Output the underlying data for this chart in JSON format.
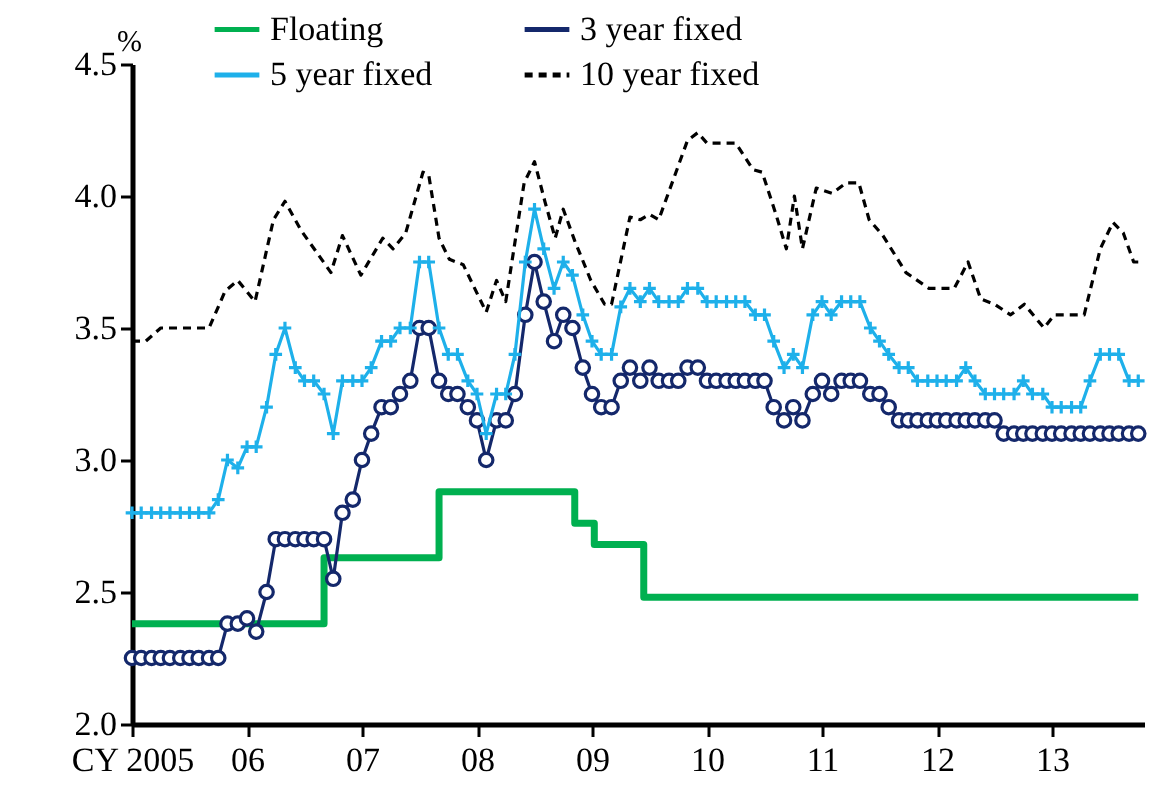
{
  "chart_data": {
    "type": "line",
    "ylabel": "%",
    "legend": "top",
    "grid": false,
    "xlim": [
      2005,
      2013.8
    ],
    "ylim": [
      2.0,
      4.5
    ],
    "xticks": [
      {
        "value": 2005,
        "label": "CY 2005"
      },
      {
        "value": 2006,
        "label": "06"
      },
      {
        "value": 2007,
        "label": "07"
      },
      {
        "value": 2008,
        "label": "08"
      },
      {
        "value": 2009,
        "label": "09"
      },
      {
        "value": 2010,
        "label": "10"
      },
      {
        "value": 2011,
        "label": "11"
      },
      {
        "value": 2012,
        "label": "12"
      },
      {
        "value": 2013,
        "label": "13"
      }
    ],
    "yticks": [
      {
        "value": 2,
        "label": "2.0"
      },
      {
        "value": 2.5,
        "label": "2.5"
      },
      {
        "value": 3,
        "label": "3.0"
      },
      {
        "value": 3.5,
        "label": "3.5"
      },
      {
        "value": 4,
        "label": "4.0"
      },
      {
        "value": 4.5,
        "label": "4.5"
      }
    ],
    "x": [
      2005.0,
      2005.08,
      2005.17,
      2005.25,
      2005.33,
      2005.42,
      2005.5,
      2005.58,
      2005.67,
      2005.75,
      2005.83,
      2005.92,
      2006.0,
      2006.08,
      2006.17,
      2006.25,
      2006.33,
      2006.42,
      2006.5,
      2006.58,
      2006.67,
      2006.75,
      2006.83,
      2006.92,
      2007.0,
      2007.08,
      2007.17,
      2007.25,
      2007.33,
      2007.42,
      2007.5,
      2007.58,
      2007.67,
      2007.75,
      2007.83,
      2007.92,
      2008.0,
      2008.08,
      2008.17,
      2008.25,
      2008.33,
      2008.42,
      2008.5,
      2008.58,
      2008.67,
      2008.75,
      2008.83,
      2008.92,
      2009.0,
      2009.08,
      2009.17,
      2009.25,
      2009.33,
      2009.42,
      2009.5,
      2009.58,
      2009.67,
      2009.75,
      2009.83,
      2009.92,
      2010.0,
      2010.08,
      2010.17,
      2010.25,
      2010.33,
      2010.42,
      2010.5,
      2010.58,
      2010.67,
      2010.75,
      2010.83,
      2010.92,
      2011.0,
      2011.08,
      2011.17,
      2011.25,
      2011.33,
      2011.42,
      2011.5,
      2011.58,
      2011.67,
      2011.75,
      2011.83,
      2011.92,
      2012.0,
      2012.08,
      2012.17,
      2012.25,
      2012.33,
      2012.42,
      2012.5,
      2012.58,
      2012.67,
      2012.75,
      2012.83,
      2012.92,
      2013.0,
      2013.08,
      2013.17,
      2013.25,
      2013.33,
      2013.42,
      2013.5,
      2013.58,
      2013.67,
      2013.75
    ],
    "series": [
      {
        "name": "Floating",
        "type": "step",
        "color": "#00b050",
        "marker": "none",
        "line_style": "solid",
        "x": [
          2005,
          2006.67,
          2007.67,
          2008.85,
          2009.02,
          2009.45,
          2013.75
        ],
        "values": [
          2.38,
          2.63,
          2.88,
          2.76,
          2.68,
          2.48,
          2.48
        ]
      },
      {
        "name": "3 year fixed",
        "color": "#14286b",
        "marker": "circle",
        "line_style": "solid",
        "values": [
          2.25,
          2.25,
          2.25,
          2.25,
          2.25,
          2.25,
          2.25,
          2.25,
          2.25,
          2.25,
          2.38,
          2.38,
          2.4,
          2.35,
          2.5,
          2.7,
          2.7,
          2.7,
          2.7,
          2.7,
          2.7,
          2.55,
          2.8,
          2.85,
          3.0,
          3.1,
          3.2,
          3.2,
          3.25,
          3.3,
          3.5,
          3.5,
          3.3,
          3.25,
          3.25,
          3.2,
          3.15,
          3.0,
          3.15,
          3.15,
          3.25,
          3.55,
          3.75,
          3.6,
          3.45,
          3.55,
          3.5,
          3.35,
          3.25,
          3.2,
          3.2,
          3.3,
          3.35,
          3.3,
          3.35,
          3.3,
          3.3,
          3.3,
          3.35,
          3.35,
          3.3,
          3.3,
          3.3,
          3.3,
          3.3,
          3.3,
          3.3,
          3.2,
          3.15,
          3.2,
          3.15,
          3.25,
          3.3,
          3.25,
          3.3,
          3.3,
          3.3,
          3.25,
          3.25,
          3.2,
          3.15,
          3.15,
          3.15,
          3.15,
          3.15,
          3.15,
          3.15,
          3.15,
          3.15,
          3.15,
          3.15,
          3.1,
          3.1,
          3.1,
          3.1,
          3.1,
          3.1,
          3.1,
          3.1,
          3.1,
          3.1,
          3.1,
          3.1,
          3.1,
          3.1,
          3.1
        ]
      },
      {
        "name": "5 year fixed",
        "color": "#1eb0ea",
        "marker": "cross",
        "line_style": "solid",
        "values": [
          2.8,
          2.8,
          2.8,
          2.8,
          2.8,
          2.8,
          2.8,
          2.8,
          2.8,
          2.85,
          3.0,
          2.97,
          3.05,
          3.05,
          3.2,
          3.4,
          3.5,
          3.35,
          3.3,
          3.3,
          3.25,
          3.1,
          3.3,
          3.3,
          3.3,
          3.35,
          3.45,
          3.45,
          3.5,
          3.5,
          3.75,
          3.75,
          3.5,
          3.4,
          3.4,
          3.3,
          3.25,
          3.1,
          3.25,
          3.25,
          3.4,
          3.75,
          3.95,
          3.8,
          3.65,
          3.75,
          3.7,
          3.55,
          3.45,
          3.4,
          3.4,
          3.58,
          3.65,
          3.6,
          3.65,
          3.6,
          3.6,
          3.6,
          3.65,
          3.65,
          3.6,
          3.6,
          3.6,
          3.6,
          3.6,
          3.55,
          3.55,
          3.45,
          3.35,
          3.4,
          3.35,
          3.55,
          3.6,
          3.55,
          3.6,
          3.6,
          3.6,
          3.5,
          3.45,
          3.4,
          3.35,
          3.35,
          3.3,
          3.3,
          3.3,
          3.3,
          3.3,
          3.35,
          3.3,
          3.25,
          3.25,
          3.25,
          3.25,
          3.3,
          3.25,
          3.25,
          3.2,
          3.2,
          3.2,
          3.2,
          3.3,
          3.4,
          3.4,
          3.4,
          3.3,
          3.3
        ]
      },
      {
        "name": "10 year fixed",
        "color": "#000000",
        "marker": "none",
        "line_style": "dashed",
        "x": [
          2005.0,
          2005.12,
          2005.25,
          2005.67,
          2005.81,
          2005.92,
          2006.07,
          2006.23,
          2006.33,
          2006.47,
          2006.73,
          2006.83,
          2006.99,
          2007.18,
          2007.27,
          2007.38,
          2007.53,
          2007.58,
          2007.67,
          2007.76,
          2007.88,
          2008.08,
          2008.17,
          2008.25,
          2008.41,
          2008.5,
          2008.59,
          2008.68,
          2008.75,
          2008.85,
          2008.99,
          2009.11,
          2009.17,
          2009.33,
          2009.42,
          2009.5,
          2009.58,
          2009.83,
          2009.92,
          2010.0,
          2010.25,
          2010.4,
          2010.48,
          2010.6,
          2010.69,
          2010.76,
          2010.83,
          2010.95,
          2011.09,
          2011.21,
          2011.32,
          2011.41,
          2011.53,
          2011.73,
          2011.93,
          2012.15,
          2012.27,
          2012.38,
          2012.5,
          2012.64,
          2012.76,
          2012.93,
          2013.02,
          2013.28,
          2013.42,
          2013.53,
          2013.62,
          2013.71,
          2013.75
        ],
        "values": [
          3.45,
          3.45,
          3.5,
          3.5,
          3.64,
          3.68,
          3.6,
          3.91,
          3.98,
          3.87,
          3.71,
          3.85,
          3.7,
          3.84,
          3.8,
          3.86,
          4.09,
          4.08,
          3.84,
          3.76,
          3.74,
          3.56,
          3.68,
          3.6,
          4.05,
          4.13,
          3.98,
          3.84,
          3.95,
          3.83,
          3.68,
          3.59,
          3.59,
          3.92,
          3.91,
          3.93,
          3.91,
          4.21,
          4.24,
          4.2,
          4.2,
          4.1,
          4.09,
          3.93,
          3.8,
          4.0,
          3.8,
          4.03,
          4.01,
          4.05,
          4.05,
          3.91,
          3.85,
          3.71,
          3.65,
          3.65,
          3.75,
          3.61,
          3.59,
          3.55,
          3.59,
          3.5,
          3.55,
          3.55,
          3.8,
          3.9,
          3.86,
          3.75,
          3.75
        ]
      }
    ]
  }
}
